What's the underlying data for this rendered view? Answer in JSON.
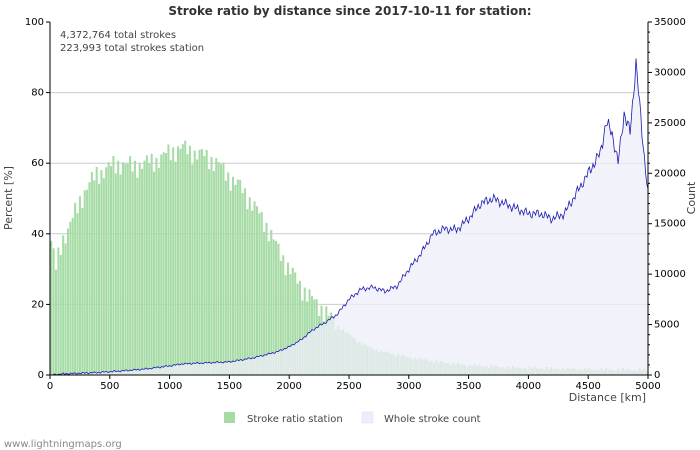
{
  "chart_data": {
    "type": "bar+area",
    "title": "Stroke ratio by distance since 2017-10-11 for station:",
    "info_lines": [
      "4,372,764 total strokes",
      "223,993 total strokes station"
    ],
    "xlabel": "Distance   [km]",
    "ylabel_left": "Percent   [%]",
    "ylabel_right": "Count",
    "xlim": [
      0,
      5000
    ],
    "ylim_left": [
      0,
      100
    ],
    "ylim_right": [
      0,
      35000
    ],
    "x_ticks": [
      0,
      500,
      1000,
      1500,
      2000,
      2500,
      3000,
      3500,
      4000,
      4500,
      5000
    ],
    "y_left_ticks": [
      0,
      20,
      40,
      60,
      80,
      100
    ],
    "y_right_ticks": [
      0,
      5000,
      10000,
      15000,
      20000,
      25000,
      30000,
      35000
    ],
    "bin_km": 20,
    "series": [
      {
        "name": "Stroke ratio station",
        "axis": "left",
        "color": "#a6dba6",
        "profile_km": [
          0,
          50,
          100,
          200,
          300,
          400,
          500,
          600,
          700,
          800,
          900,
          1000,
          1100,
          1200,
          1300,
          1400,
          1500,
          1600,
          1700,
          1800,
          1900,
          2000,
          2100,
          2200,
          2300,
          2400,
          2500,
          2600,
          2700,
          2800,
          3000,
          3200,
          3400,
          3600,
          3800,
          4000,
          4500,
          5000
        ],
        "profile_percent": [
          40,
          30,
          38,
          45,
          53,
          57,
          59,
          60,
          59,
          60,
          61,
          63,
          64.5,
          63,
          62,
          60,
          56,
          53,
          48,
          43,
          36,
          30,
          25,
          21,
          18,
          14,
          11.5,
          9,
          7.5,
          6.5,
          5,
          4,
          3,
          2.6,
          2.2,
          2,
          1.6,
          1.4
        ]
      },
      {
        "name": "Whole stroke count",
        "axis": "right",
        "color": "#1a1ab0",
        "fill": "#eeeefa",
        "profile_km": [
          0,
          100,
          200,
          400,
          600,
          800,
          1000,
          1100,
          1300,
          1500,
          1700,
          1800,
          1900,
          2000,
          2100,
          2200,
          2300,
          2400,
          2500,
          2600,
          2700,
          2800,
          2900,
          3000,
          3100,
          3200,
          3300,
          3400,
          3500,
          3600,
          3700,
          3800,
          3900,
          4000,
          4100,
          4200,
          4300,
          4400,
          4500,
          4600,
          4650,
          4700,
          4750,
          4800,
          4850,
          4900,
          4950,
          5000
        ],
        "profile_count": [
          0,
          100,
          150,
          250,
          400,
          600,
          900,
          1100,
          1200,
          1300,
          1700,
          2000,
          2300,
          2800,
          3500,
          4500,
          5200,
          6000,
          7500,
          8500,
          8700,
          8300,
          8800,
          10500,
          12000,
          14000,
          14500,
          14400,
          15500,
          17000,
          17500,
          17000,
          16500,
          16000,
          16000,
          15500,
          16000,
          18000,
          20000,
          22000,
          25000,
          24000,
          21000,
          26000,
          24000,
          31000,
          24000,
          18000
        ]
      }
    ]
  },
  "legend": [
    {
      "label": "Stroke ratio station",
      "color": "#a6dba6"
    },
    {
      "label": "Whole stroke count",
      "color": "#eeeefa"
    }
  ],
  "footer": "www.lightningmaps.org"
}
